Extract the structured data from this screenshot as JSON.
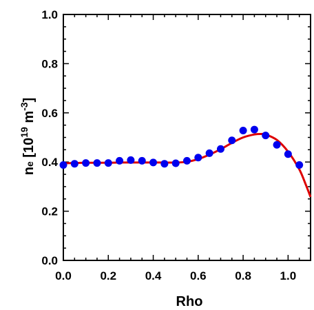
{
  "chart_data": {
    "type": "scatter",
    "title": "",
    "xlabel": "Rho",
    "ylabel_parts": {
      "base": "n",
      "sub": "e",
      "open": " [10",
      "exp": "19",
      "unit": " m",
      "unit_exp": "-3",
      "close": "]"
    },
    "xlim": [
      0.0,
      1.1
    ],
    "ylim": [
      0.0,
      1.0
    ],
    "x_ticks": [
      0.0,
      0.2,
      0.4,
      0.6,
      0.8,
      1.0
    ],
    "x_tick_labels": [
      "0.0",
      "0.2",
      "0.4",
      "0.6",
      "0.8",
      "1.0"
    ],
    "y_ticks": [
      0.0,
      0.2,
      0.4,
      0.6,
      0.8,
      1.0
    ],
    "y_tick_labels": [
      "0.0",
      "0.2",
      "0.4",
      "0.6",
      "0.8",
      "1.0"
    ],
    "grid": false,
    "colors": {
      "points": "#0000ee",
      "fit": "#dd0000",
      "axes": "#000000"
    },
    "series": [
      {
        "kind": "points",
        "x": [
          0.0,
          0.05,
          0.1,
          0.15,
          0.2,
          0.25,
          0.3,
          0.35,
          0.4,
          0.45,
          0.5,
          0.55,
          0.6,
          0.65,
          0.7,
          0.75,
          0.8,
          0.85,
          0.9,
          0.95,
          1.0,
          1.05
        ],
        "y": [
          0.388,
          0.393,
          0.396,
          0.396,
          0.396,
          0.405,
          0.408,
          0.405,
          0.398,
          0.393,
          0.395,
          0.405,
          0.418,
          0.436,
          0.453,
          0.488,
          0.528,
          0.532,
          0.508,
          0.47,
          0.432,
          0.388
        ]
      },
      {
        "kind": "fit",
        "x": [
          0.0,
          0.05,
          0.1,
          0.15,
          0.2,
          0.25,
          0.3,
          0.35,
          0.4,
          0.45,
          0.5,
          0.55,
          0.6,
          0.65,
          0.7,
          0.75,
          0.8,
          0.85,
          0.88,
          0.9,
          0.95,
          1.0,
          1.05,
          1.08,
          1.1
        ],
        "y": [
          0.395,
          0.396,
          0.397,
          0.397,
          0.397,
          0.398,
          0.398,
          0.398,
          0.398,
          0.398,
          0.398,
          0.401,
          0.412,
          0.43,
          0.452,
          0.478,
          0.5,
          0.512,
          0.514,
          0.512,
          0.49,
          0.442,
          0.37,
          0.305,
          0.258
        ]
      }
    ]
  }
}
